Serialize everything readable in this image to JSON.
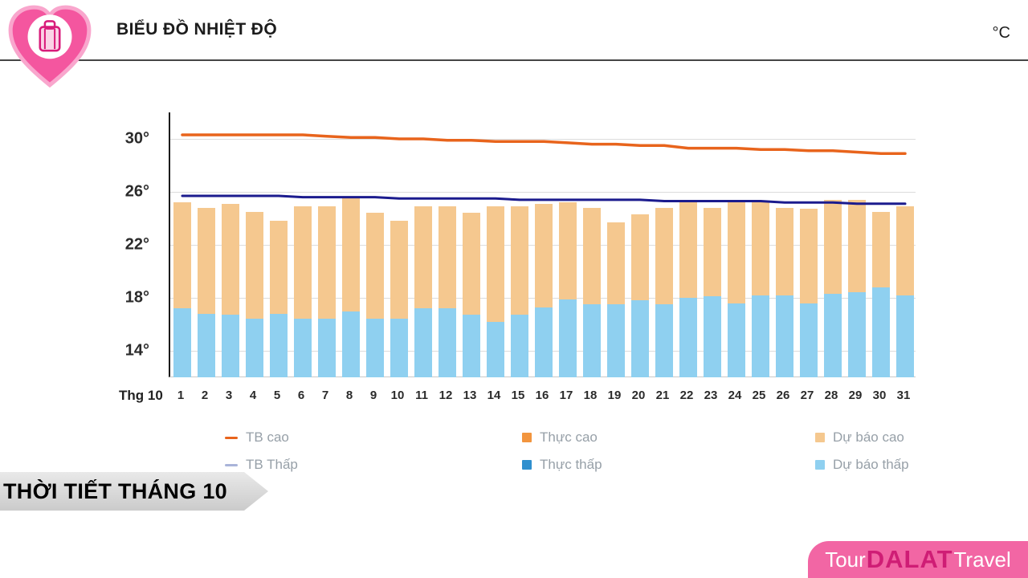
{
  "header": {
    "title": "BIỂU ĐỒ NHIỆT ĐỘ",
    "unit": "°C"
  },
  "logo": {
    "label": "TOUR DALAT TRAVEL"
  },
  "chart_data": {
    "type": "bar",
    "title": "BIỂU ĐỒ NHIỆT ĐỘ",
    "unit": "°C",
    "x_axis_label": "Thg 10",
    "categories": [
      1,
      2,
      3,
      4,
      5,
      6,
      7,
      8,
      9,
      10,
      11,
      12,
      13,
      14,
      15,
      16,
      17,
      18,
      19,
      20,
      21,
      22,
      23,
      24,
      25,
      26,
      27,
      28,
      29,
      30,
      31
    ],
    "ylim": [
      12,
      32
    ],
    "yticks": [
      14,
      18,
      22,
      26,
      30
    ],
    "grid": true,
    "legend_position": "bottom",
    "series": [
      {
        "name": "Dự báo cao",
        "type": "bar",
        "color": "#f5c88f",
        "values": [
          25.2,
          24.8,
          25.1,
          24.5,
          23.8,
          24.9,
          24.9,
          25.5,
          24.4,
          23.8,
          24.9,
          24.9,
          24.4,
          24.9,
          24.9,
          25.1,
          25.2,
          24.8,
          23.7,
          24.3,
          24.8,
          25.2,
          24.8,
          25.2,
          25.3,
          24.8,
          24.7,
          25.4,
          25.4,
          24.5,
          24.9
        ]
      },
      {
        "name": "Dự báo thấp",
        "type": "bar",
        "color": "#8fd0f0",
        "values": [
          17.2,
          16.8,
          16.7,
          16.4,
          16.8,
          16.4,
          16.4,
          17.0,
          16.4,
          16.4,
          17.2,
          17.2,
          16.7,
          16.2,
          16.7,
          17.3,
          17.9,
          17.5,
          17.5,
          17.8,
          17.5,
          18.0,
          18.1,
          17.6,
          18.2,
          18.2,
          17.6,
          18.3,
          18.4,
          18.8,
          18.2
        ]
      },
      {
        "name": "TB cao",
        "type": "line",
        "color": "#e8641c",
        "width": 3.5,
        "values": [
          30.3,
          30.3,
          30.3,
          30.3,
          30.3,
          30.3,
          30.2,
          30.1,
          30.1,
          30.0,
          30.0,
          29.9,
          29.9,
          29.8,
          29.8,
          29.8,
          29.7,
          29.6,
          29.6,
          29.5,
          29.5,
          29.3,
          29.3,
          29.3,
          29.2,
          29.2,
          29.1,
          29.1,
          29.0,
          28.9,
          28.9
        ]
      },
      {
        "name": "TB Thấp",
        "type": "line",
        "color": "#1b1b8e",
        "width": 3,
        "values": [
          25.7,
          25.7,
          25.7,
          25.7,
          25.7,
          25.6,
          25.6,
          25.6,
          25.6,
          25.5,
          25.5,
          25.5,
          25.5,
          25.5,
          25.4,
          25.4,
          25.4,
          25.4,
          25.4,
          25.4,
          25.3,
          25.3,
          25.3,
          25.3,
          25.3,
          25.2,
          25.2,
          25.2,
          25.1,
          25.1,
          25.1
        ]
      }
    ]
  },
  "legend": {
    "items": [
      {
        "label": "TB cao",
        "marker": "line",
        "color": "#e8641c"
      },
      {
        "label": "Thực cao",
        "marker": "square",
        "color": "#f2953e"
      },
      {
        "label": "Dự báo cao",
        "marker": "square",
        "color": "#f5c88f"
      },
      {
        "label": "TB Thấp",
        "marker": "line",
        "color": "#a9b4d9"
      },
      {
        "label": "Thực thấp",
        "marker": "square",
        "color": "#2f8fce"
      },
      {
        "label": "Dự báo thấp",
        "marker": "square",
        "color": "#8fd0f0"
      }
    ]
  },
  "banner": {
    "label": "THỜI TIẾT THÁNG 10"
  },
  "footer_brand": {
    "tour": "Tour",
    "dalat": "DALAT",
    "travel": "Travel"
  }
}
